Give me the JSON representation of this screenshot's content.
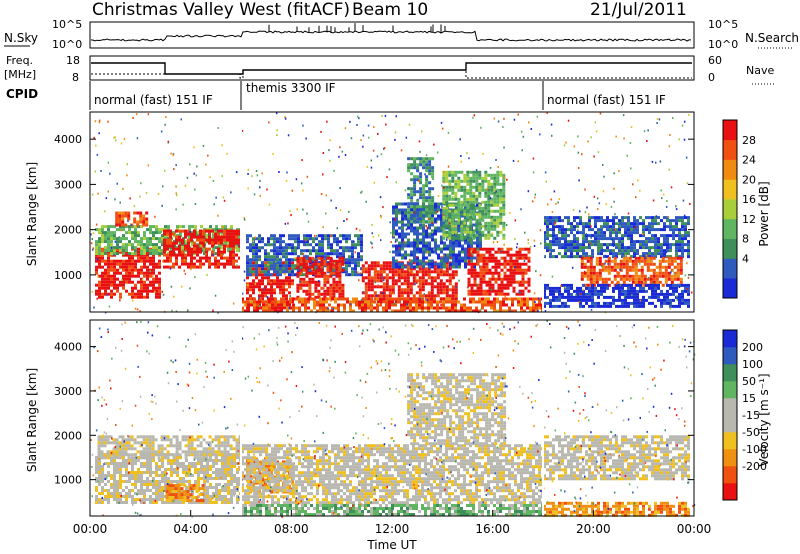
{
  "header": {
    "station": "Christmas Valley West (fitACF)",
    "beam": "Beam 10",
    "date": "21/Jul/2011"
  },
  "panels": {
    "nsky_label": "N.Sky",
    "nsearch_label": "N.Search",
    "freq_label": "Freq.",
    "freq_unit": "[MHz]",
    "nave_label": "Nave",
    "cpid_label": "CPID",
    "n_ticks_left": [
      "10^5",
      "10^0"
    ],
    "n_ticks_right": [
      "10^5",
      "10^0"
    ],
    "freq_ticks": [
      "18",
      "8"
    ],
    "nave_ticks": [
      "60",
      "0"
    ]
  },
  "cpid_segments": [
    {
      "label": "normal (fast) 151 IF",
      "start": 0,
      "end": 6
    },
    {
      "label": "themis 3300 IF",
      "start": 6,
      "end": 18
    },
    {
      "label": "normal (fast) 151 IF",
      "start": 18,
      "end": 24
    }
  ],
  "colors": {
    "power": [
      "#1a2bd6",
      "#2f5bbf",
      "#3f8f5a",
      "#5fb560",
      "#a8cf3a",
      "#f0c020",
      "#f08a10",
      "#f05010",
      "#e81010"
    ],
    "velocity": [
      "#e81010",
      "#f05010",
      "#f09010",
      "#f0c020",
      "#b8b8b0",
      "#b8b8b0",
      "#5fb560",
      "#3f8f5a",
      "#2f5bbf",
      "#1a2bd6"
    ]
  },
  "chart_data": [
    {
      "type": "heatmap",
      "name": "power",
      "ylabel": "Slant Range [km]",
      "yticks": [
        "4000",
        "3000",
        "2000",
        "1000"
      ],
      "ylim": [
        180,
        4600
      ],
      "xlim": [
        0,
        24
      ],
      "colorbar_label": "Power [dB]",
      "colorbar_ticks": [
        "28",
        "24",
        "20",
        "16",
        "12",
        "8",
        "4"
      ],
      "regions": [
        {
          "t0": 0.2,
          "t1": 2.8,
          "r0": 500,
          "r1": 1600,
          "level": 8
        },
        {
          "t0": 0.2,
          "t1": 6.0,
          "r0": 1500,
          "r1": 2100,
          "level": 3
        },
        {
          "t0": 2.9,
          "t1": 5.9,
          "r0": 1200,
          "r1": 2000,
          "level": 8
        },
        {
          "t0": 1.0,
          "t1": 2.2,
          "r0": 2100,
          "r1": 2400,
          "level": 7
        },
        {
          "t0": 6.2,
          "t1": 8.0,
          "r0": 300,
          "r1": 1300,
          "level": 8
        },
        {
          "t0": 6.2,
          "t1": 10.8,
          "r0": 1000,
          "r1": 1900,
          "level": 1
        },
        {
          "t0": 8.2,
          "t1": 10.0,
          "r0": 500,
          "r1": 1400,
          "level": 8
        },
        {
          "t0": 10.8,
          "t1": 14.6,
          "r0": 400,
          "r1": 1300,
          "level": 8
        },
        {
          "t0": 12.0,
          "t1": 15.5,
          "r0": 1200,
          "r1": 2600,
          "level": 1
        },
        {
          "t0": 12.6,
          "t1": 13.6,
          "r0": 2200,
          "r1": 3600,
          "level": 2
        },
        {
          "t0": 14.0,
          "t1": 16.5,
          "r0": 1800,
          "r1": 3300,
          "level": 3
        },
        {
          "t0": 15.0,
          "t1": 17.5,
          "r0": 600,
          "r1": 1600,
          "level": 8
        },
        {
          "t0": 6.0,
          "t1": 18.0,
          "r0": 200,
          "r1": 500,
          "level": 7
        },
        {
          "t0": 18.0,
          "t1": 23.8,
          "r0": 1400,
          "r1": 2300,
          "level": 1
        },
        {
          "t0": 19.5,
          "t1": 23.5,
          "r0": 800,
          "r1": 1400,
          "level": 7
        },
        {
          "t0": 18.0,
          "t1": 23.8,
          "r0": 300,
          "r1": 800,
          "level": 0
        }
      ]
    },
    {
      "type": "heatmap",
      "name": "velocity",
      "ylabel": "Slant Range [km]",
      "xlabel": "Time UT",
      "yticks": [
        "4000",
        "3000",
        "2000",
        "1000"
      ],
      "xticks": [
        "00:00",
        "04:00",
        "08:00",
        "12:00",
        "16:00",
        "20:00",
        "00:00"
      ],
      "ylim": [
        180,
        4600
      ],
      "xlim": [
        0,
        24
      ],
      "colorbar_label": "Velocity [m s⁻¹]",
      "colorbar_ticks": [
        "200",
        "100",
        "50",
        "15",
        "-15",
        "-50",
        "-100",
        "-200"
      ],
      "regions": [
        {
          "t0": 0.2,
          "t1": 6.0,
          "r0": 500,
          "r1": 1600,
          "level": 4
        },
        {
          "t0": 0.3,
          "t1": 6.0,
          "r0": 1500,
          "r1": 2000,
          "level": 4
        },
        {
          "t0": 3.0,
          "t1": 4.5,
          "r0": 500,
          "r1": 900,
          "level": 2
        },
        {
          "t0": 6.2,
          "t1": 8.0,
          "r0": 700,
          "r1": 1500,
          "level": 2
        },
        {
          "t0": 6.0,
          "t1": 18.0,
          "r0": 500,
          "r1": 1800,
          "level": 4
        },
        {
          "t0": 12.6,
          "t1": 16.5,
          "r0": 1800,
          "r1": 3400,
          "level": 4
        },
        {
          "t0": 6.0,
          "t1": 18.0,
          "r0": 200,
          "r1": 450,
          "level": 6
        },
        {
          "t0": 18.0,
          "t1": 23.8,
          "r0": 1000,
          "r1": 2000,
          "level": 4
        },
        {
          "t0": 18.0,
          "t1": 23.8,
          "r0": 200,
          "r1": 500,
          "level": 2
        }
      ]
    }
  ]
}
